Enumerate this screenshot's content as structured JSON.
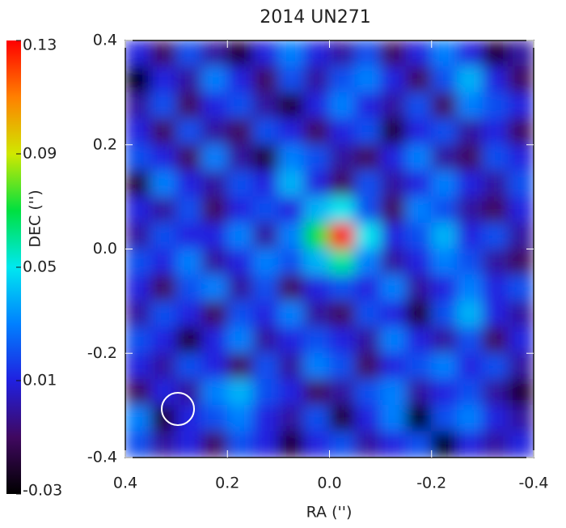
{
  "chart_data": {
    "type": "heatmap",
    "title": "2014 UN271",
    "xlabel": "RA ('')",
    "ylabel": "DEC ('')",
    "xlim": [
      0.4,
      -0.4
    ],
    "xticks": [
      0.4,
      0.2,
      {
        "value": 0,
        "label": "0.0"
      },
      -0.2,
      -0.4
    ],
    "ylim": [
      -0.4,
      0.4
    ],
    "yticks": [
      -0.4,
      -0.2,
      {
        "value": 0,
        "label": "0.0"
      },
      0.2,
      0.4
    ],
    "zlim": [
      -0.03,
      0.13
    ],
    "zticks": [
      -0.03,
      0.01,
      0.05,
      0.09,
      0.13
    ],
    "colormap": [
      "#000000",
      "#400860",
      "#2020e0",
      "#0080ff",
      "#00e8f0",
      "#00e040",
      "#d0e800",
      "#ff8000",
      "#ff0000"
    ],
    "z": [
      [
        0.01,
        -0.01,
        0.02,
        0.0,
        -0.02,
        0.01,
        0.03,
        0.01,
        0.0,
        0.02,
        -0.01,
        0.01,
        0.03,
        0.01,
        -0.02,
        0.0
      ],
      [
        -0.03,
        0.01,
        0.0,
        0.03,
        0.01,
        -0.01,
        0.02,
        0.0,
        0.02,
        0.03,
        0.01,
        -0.01,
        0.02,
        0.04,
        0.01,
        -0.01
      ],
      [
        0.0,
        0.02,
        -0.01,
        0.01,
        0.02,
        0.0,
        -0.02,
        0.01,
        0.03,
        0.01,
        0.0,
        0.02,
        -0.01,
        0.03,
        0.02,
        0.01
      ],
      [
        0.01,
        -0.01,
        0.02,
        0.0,
        -0.01,
        0.02,
        0.01,
        -0.01,
        0.01,
        0.02,
        -0.02,
        0.01,
        0.02,
        0.0,
        0.01,
        -0.01
      ],
      [
        0.02,
        0.01,
        -0.01,
        0.03,
        0.0,
        -0.02,
        0.03,
        0.02,
        0.0,
        -0.01,
        0.01,
        0.03,
        0.0,
        -0.01,
        0.02,
        0.01
      ],
      [
        -0.02,
        0.03,
        0.01,
        0.0,
        0.02,
        0.01,
        0.04,
        0.01,
        -0.01,
        0.02,
        0.0,
        0.01,
        0.03,
        0.01,
        0.0,
        0.02
      ],
      [
        0.01,
        0.0,
        0.02,
        -0.01,
        0.01,
        0.02,
        0.01,
        0.04,
        0.05,
        0.02,
        -0.01,
        0.03,
        0.02,
        0.0,
        -0.01,
        0.01
      ],
      [
        0.0,
        0.02,
        0.01,
        0.01,
        0.03,
        0.0,
        0.03,
        0.07,
        0.13,
        0.05,
        0.01,
        0.02,
        0.04,
        0.01,
        0.02,
        0.0
      ],
      [
        0.02,
        0.01,
        0.03,
        0.0,
        0.01,
        0.03,
        0.02,
        0.04,
        0.06,
        0.03,
        0.0,
        0.01,
        0.03,
        0.02,
        0.0,
        -0.01
      ],
      [
        0.01,
        -0.01,
        0.02,
        0.03,
        0.0,
        0.02,
        -0.01,
        0.01,
        0.02,
        0.01,
        0.03,
        0.0,
        0.01,
        0.03,
        0.01,
        0.02
      ],
      [
        0.0,
        0.02,
        0.01,
        -0.01,
        0.02,
        0.01,
        0.03,
        0.0,
        -0.01,
        0.02,
        0.01,
        -0.02,
        0.02,
        0.04,
        0.01,
        0.0
      ],
      [
        0.02,
        0.01,
        -0.02,
        0.01,
        0.03,
        0.0,
        0.01,
        0.02,
        0.01,
        0.0,
        0.03,
        0.01,
        0.0,
        0.02,
        -0.01,
        0.01
      ],
      [
        0.01,
        0.0,
        0.02,
        0.01,
        -0.01,
        0.02,
        0.0,
        0.03,
        0.02,
        -0.01,
        0.01,
        0.02,
        0.03,
        0.01,
        0.02,
        0.0
      ],
      [
        -0.01,
        0.01,
        0.0,
        0.03,
        0.04,
        0.02,
        0.01,
        -0.01,
        0.0,
        0.02,
        0.03,
        0.0,
        0.01,
        0.02,
        0.0,
        -0.02
      ],
      [
        0.03,
        -0.02,
        0.01,
        0.02,
        0.03,
        0.01,
        0.0,
        0.02,
        -0.02,
        0.01,
        0.03,
        -0.03,
        0.02,
        0.03,
        0.01,
        0.0
      ],
      [
        0.02,
        0.0,
        0.01,
        -0.01,
        0.02,
        0.01,
        -0.02,
        0.01,
        0.02,
        0.0,
        0.01,
        0.02,
        -0.03,
        0.01,
        0.0,
        0.01
      ]
    ]
  }
}
